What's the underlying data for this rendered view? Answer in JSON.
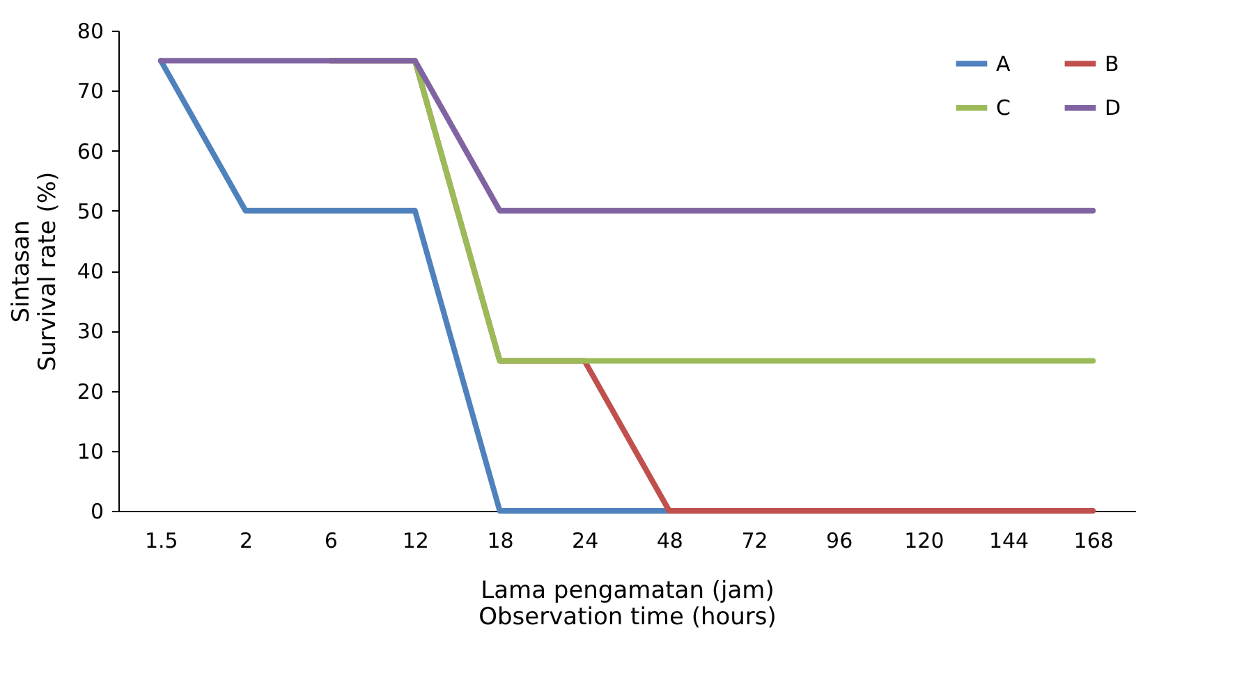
{
  "chart_data": {
    "type": "line",
    "xlabel": "Lama pengamatan (jam)\nObservation time (hours)",
    "ylabel": "Sintasan\nSurvival rate (%)",
    "categories": [
      "1.5",
      "2",
      "6",
      "12",
      "18",
      "24",
      "48",
      "72",
      "96",
      "120",
      "144",
      "168"
    ],
    "series": [
      {
        "name": "A",
        "color": "#4f81bd",
        "values": [
          75,
          50,
          50,
          50,
          0,
          0,
          0,
          0,
          null,
          null,
          null,
          null
        ]
      },
      {
        "name": "B",
        "color": "#c0504d",
        "values": [
          null,
          null,
          75,
          75,
          25,
          25,
          0,
          0,
          0,
          0,
          0,
          0
        ]
      },
      {
        "name": "C",
        "color": "#9bbb59",
        "values": [
          null,
          null,
          75,
          75,
          25,
          25,
          25,
          25,
          25,
          25,
          25,
          25
        ]
      },
      {
        "name": "D",
        "color": "#8064a2",
        "values": [
          75,
          75,
          75,
          75,
          50,
          50,
          50,
          50,
          50,
          50,
          50,
          50
        ]
      }
    ],
    "ylim": [
      0,
      80
    ],
    "yticks": [
      0,
      10,
      20,
      30,
      40,
      50,
      60,
      70,
      80
    ],
    "grid": false,
    "legend": "top right",
    "line_style": "solid"
  }
}
